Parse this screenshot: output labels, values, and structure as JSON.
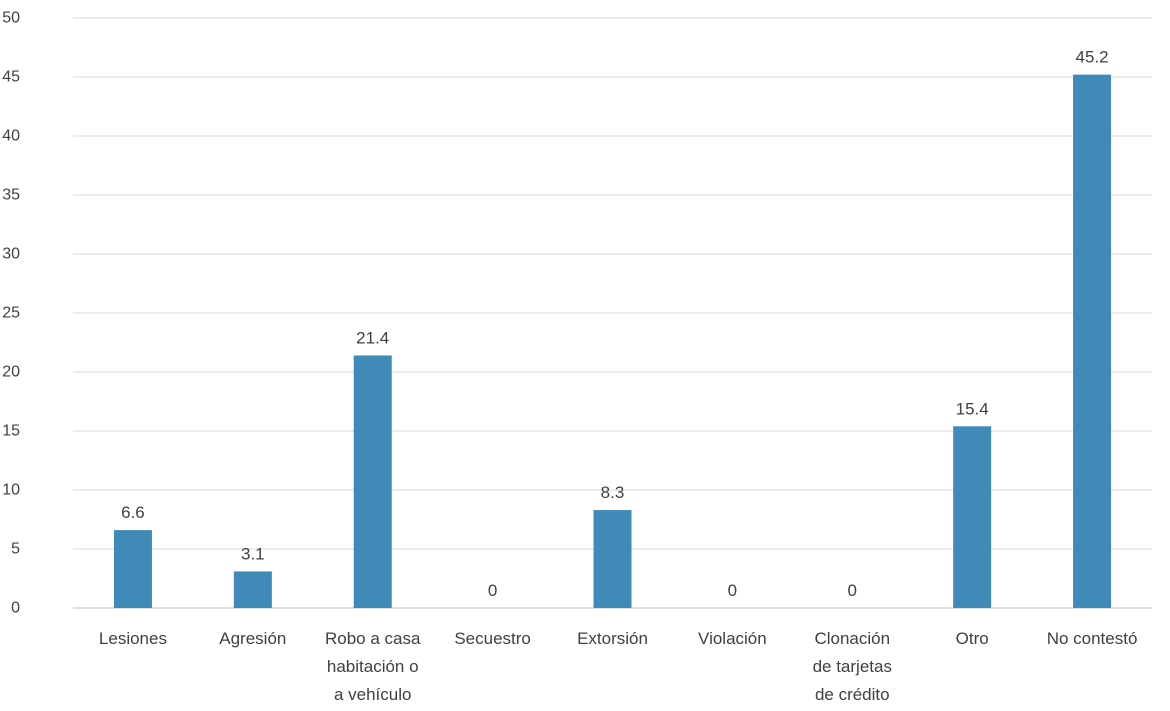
{
  "chart_data": {
    "type": "bar",
    "categories": [
      [
        "Lesiones"
      ],
      [
        "Agresión"
      ],
      [
        "Robo a casa",
        "habitación o",
        "a vehículo"
      ],
      [
        "Secuestro"
      ],
      [
        "Extorsión"
      ],
      [
        "Violación"
      ],
      [
        "Clonación",
        "de tarjetas",
        "de crédito"
      ],
      [
        "Otro"
      ],
      [
        "No contestó"
      ]
    ],
    "values": [
      6.6,
      3.1,
      21.4,
      0,
      8.3,
      0,
      0,
      15.4,
      45.2
    ],
    "value_labels": [
      "6.6",
      "3.1",
      "21.4",
      "0",
      "8.3",
      "0",
      "0",
      "15.4",
      "45.2"
    ],
    "yticks": [
      0,
      5,
      10,
      15,
      20,
      25,
      30,
      35,
      40,
      45,
      50
    ],
    "ylim": [
      0,
      50
    ],
    "grid": true,
    "legend": "none",
    "colors": {
      "bar": "#3f8ab7",
      "grid": "#d9d9d9",
      "axis": "#bfbfbf",
      "text": "#404040"
    }
  }
}
